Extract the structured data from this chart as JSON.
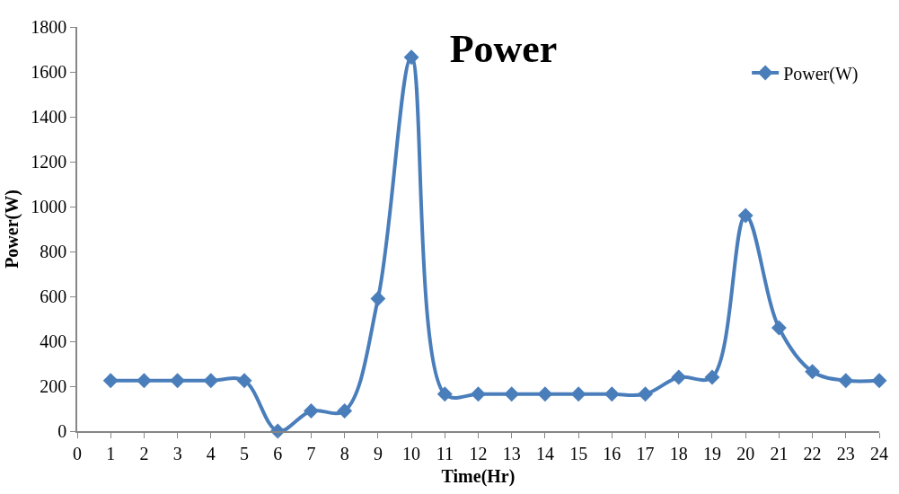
{
  "chart_data": {
    "type": "line",
    "title": "Power",
    "xlabel": "Time(Hr)",
    "ylabel": "Power(W)",
    "x": [
      1,
      2,
      3,
      4,
      5,
      6,
      7,
      8,
      9,
      10,
      11,
      12,
      13,
      14,
      15,
      16,
      17,
      18,
      19,
      20,
      21,
      22,
      23,
      24
    ],
    "series": [
      {
        "name": "Power(W)",
        "color": "#4a7ebb",
        "values": [
          225,
          225,
          225,
          225,
          225,
          0,
          90,
          90,
          590,
          1665,
          165,
          165,
          165,
          165,
          165,
          165,
          165,
          240,
          240,
          960,
          460,
          265,
          225,
          225
        ]
      }
    ],
    "xlim": [
      0,
      24
    ],
    "xticks": [
      0,
      1,
      2,
      3,
      4,
      5,
      6,
      7,
      8,
      9,
      10,
      11,
      12,
      13,
      14,
      15,
      16,
      17,
      18,
      19,
      20,
      21,
      22,
      23,
      24
    ],
    "ylim": [
      0,
      1800
    ],
    "yticks": [
      0,
      200,
      400,
      600,
      800,
      1000,
      1200,
      1400,
      1600,
      1800
    ],
    "legend": "top right",
    "marker": "diamond",
    "line_style": "solid",
    "grid": false
  }
}
